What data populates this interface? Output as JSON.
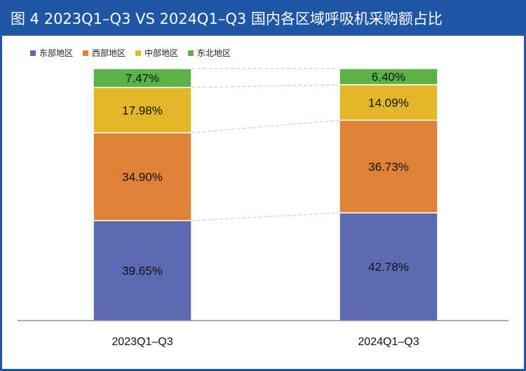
{
  "title": "图 4  2023Q1–Q3  VS  2024Q1–Q3 国内各区域呼吸机采购额占比",
  "colors": {
    "east": "#5b6ab3",
    "west": "#e08137",
    "central": "#e3b72a",
    "northeast": "#5bb346",
    "frame": "#1f56a5"
  },
  "legend": [
    {
      "label": "东部地区",
      "color": "#5b6ab3"
    },
    {
      "label": "西部地区",
      "color": "#e08137"
    },
    {
      "label": "中部地区",
      "color": "#e3b72a"
    },
    {
      "label": "东北地区",
      "color": "#5bb346"
    }
  ],
  "chart_data": {
    "type": "bar",
    "stacked": true,
    "percent": true,
    "categories": [
      "2023Q1–Q3",
      "2024Q1–Q3"
    ],
    "series": [
      {
        "name": "东部地区",
        "color": "#5b6ab3",
        "values": [
          39.65,
          42.78
        ],
        "labels": [
          "39.65%",
          "42.78%"
        ]
      },
      {
        "name": "西部地区",
        "color": "#e08137",
        "values": [
          34.9,
          36.73
        ],
        "labels": [
          "34.90%",
          "36.73%"
        ]
      },
      {
        "name": "中部地区",
        "color": "#e3b72a",
        "values": [
          17.98,
          14.09
        ],
        "labels": [
          "17.98%",
          "14.09%"
        ]
      },
      {
        "name": "东北地区",
        "color": "#5bb346",
        "values": [
          7.47,
          6.4
        ],
        "labels": [
          "7.47%",
          "6.40%"
        ]
      }
    ],
    "ylim": [
      0,
      100
    ],
    "connector_lines": true
  }
}
